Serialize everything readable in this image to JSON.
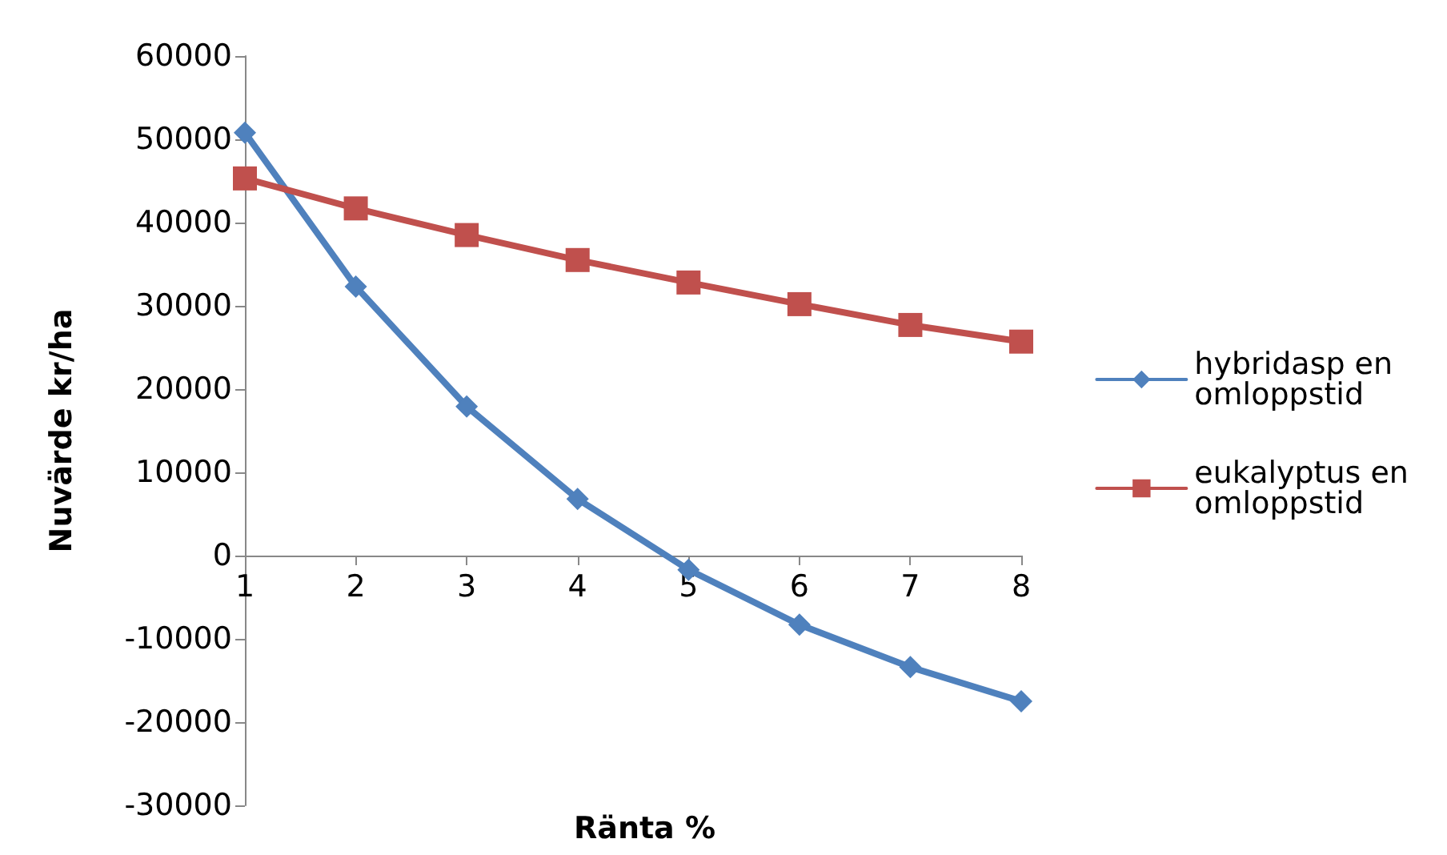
{
  "chart_data": {
    "type": "line",
    "xlabel": "Ränta %",
    "ylabel": "Nuvärde kr/ha",
    "categories": [
      "1",
      "2",
      "3",
      "4",
      "5",
      "6",
      "7",
      "8"
    ],
    "series": [
      {
        "name": "hybridasp en omloppstid",
        "color": "#4f81bd",
        "marker": "diamond",
        "values": [
          50800,
          32300,
          17900,
          6800,
          -1700,
          -8300,
          -13400,
          -17500
        ]
      },
      {
        "name": "eukalyptus en omloppstid",
        "color": "#c0504d",
        "marker": "square",
        "values": [
          45300,
          41700,
          38500,
          35500,
          32800,
          30200,
          27700,
          25700
        ]
      }
    ],
    "ylim": [
      -30000,
      60000
    ],
    "yticks": [
      -30000,
      -20000,
      -10000,
      0,
      10000,
      20000,
      30000,
      40000,
      50000,
      60000
    ],
    "grid": false,
    "legend": "right",
    "line_style": "solid"
  }
}
